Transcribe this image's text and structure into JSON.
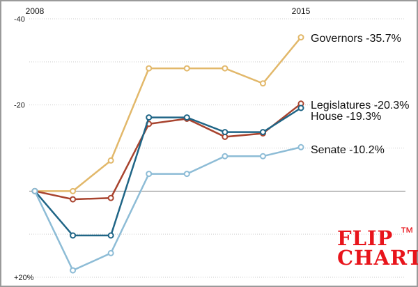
{
  "chart_data": {
    "type": "line",
    "x": [
      2008,
      2009,
      2010,
      2011,
      2012,
      2013,
      2014,
      2015
    ],
    "x_tick_labels": [
      "2008",
      "2015"
    ],
    "y_tick_labels": [
      "-40",
      "-20",
      "+20%"
    ],
    "y_ticks": [
      -40,
      -20,
      20
    ],
    "ylim": [
      -40,
      20
    ],
    "y_inverted": true,
    "grid": true,
    "series": [
      {
        "name": "Governors",
        "end_label": "-35.7%",
        "color": "#e2b86a",
        "values": [
          0,
          0,
          -7.1,
          -28.5,
          -28.5,
          -28.5,
          -25.0,
          -35.7
        ]
      },
      {
        "name": "Legislatures",
        "end_label": "-20.3%",
        "color": "#a8432e",
        "values": [
          0,
          1.9,
          1.6,
          -15.6,
          -16.8,
          -12.6,
          -13.4,
          -20.3
        ]
      },
      {
        "name": "House",
        "end_label": "-19.3%",
        "color": "#1f6586",
        "values": [
          0,
          10.3,
          10.3,
          -17.1,
          -17.1,
          -13.7,
          -13.7,
          -19.3
        ]
      },
      {
        "name": "Senate",
        "end_label": "-10.2%",
        "color": "#8dbcd6",
        "values": [
          0,
          18.4,
          14.4,
          -4.0,
          -4.0,
          -8.1,
          -8.1,
          -10.2
        ]
      }
    ]
  },
  "logo": {
    "line1": "FLIP",
    "tm": "™",
    "line2": "CHART",
    "color": "#e8141b"
  }
}
